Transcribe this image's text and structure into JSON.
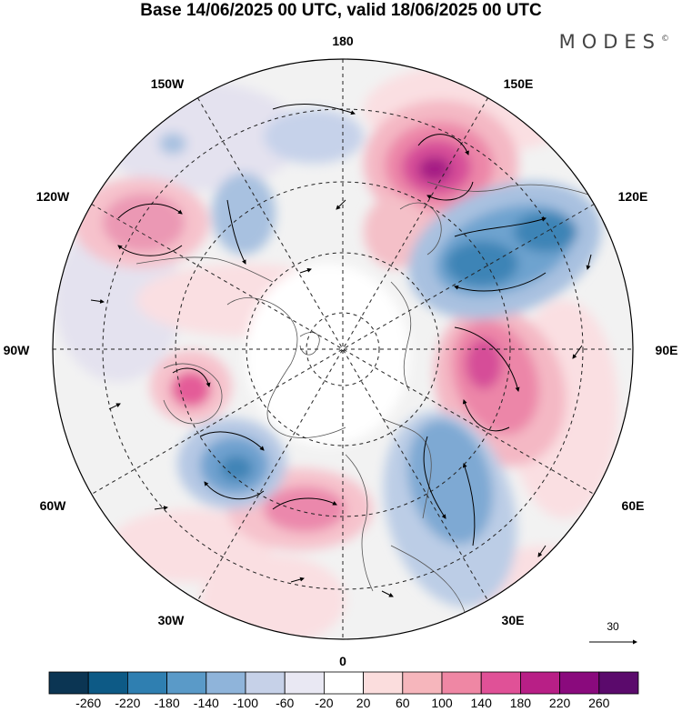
{
  "title": "Base 14/06/2025 00 UTC, valid 18/06/2025 00 UTC",
  "brand": "MODES",
  "brand_mark": "©",
  "longitude_labels": {
    "top": "180",
    "bottom": "0",
    "left": "90W",
    "right": "90E",
    "upper_left_1": "150W",
    "upper_left_2": "120W",
    "upper_right_1": "150E",
    "upper_right_2": "120E",
    "lower_left_1": "60W",
    "lower_left_2": "30W",
    "lower_right_1": "60E",
    "lower_right_2": "30E"
  },
  "wind_scale": {
    "value": "30"
  },
  "colorbar": {
    "ticks": [
      "-260",
      "-220",
      "-180",
      "-140",
      "-100",
      "-60",
      "-20",
      "20",
      "60",
      "100",
      "140",
      "180",
      "220",
      "260"
    ],
    "colors": [
      "#0b3553",
      "#0d5a86",
      "#2f7fb1",
      "#5a9ac8",
      "#8fb4da",
      "#c6d1e8",
      "#e9e8f3",
      "#ffffff",
      "#fbdddd",
      "#f6b6bc",
      "#ef87a4",
      "#e05197",
      "#b81f86",
      "#8a0a7d",
      "#5b0a6c"
    ]
  },
  "colors": {
    "land_outline": "#555555",
    "grid_line": "#222222",
    "background_field": "#eeeeee"
  }
}
